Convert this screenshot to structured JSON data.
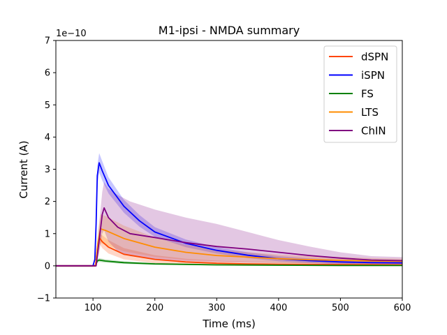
{
  "chart_data": {
    "type": "line",
    "title": "M1-ipsi - NMDA summary",
    "xlabel": "Time (ms)",
    "ylabel": "Current (A)",
    "offset_text": "1e−10",
    "xlim": [
      40,
      600
    ],
    "ylim": [
      -1,
      7
    ],
    "xticks": [
      "100",
      "200",
      "300",
      "400",
      "500",
      "600"
    ],
    "yticks": [
      "−1",
      "0",
      "1",
      "2",
      "3",
      "4",
      "5",
      "6",
      "7"
    ],
    "grid": false,
    "legend_position": "top-right",
    "series": [
      {
        "name": "dSPN",
        "color": "#ff4500",
        "mean": [
          [
            40,
            0
          ],
          [
            100,
            0
          ],
          [
            104,
            0
          ],
          [
            107,
            0.55
          ],
          [
            110,
            0.88
          ],
          [
            115,
            0.75
          ],
          [
            125,
            0.58
          ],
          [
            150,
            0.36
          ],
          [
            200,
            0.2
          ],
          [
            250,
            0.12
          ],
          [
            300,
            0.08
          ],
          [
            350,
            0.06
          ],
          [
            400,
            0.05
          ],
          [
            500,
            0.04
          ],
          [
            600,
            0.03
          ]
        ],
        "upper": [
          [
            40,
            0.03
          ],
          [
            100,
            0.03
          ],
          [
            104,
            0.05
          ],
          [
            107,
            0.75
          ],
          [
            110,
            1.0
          ],
          [
            115,
            0.95
          ],
          [
            125,
            0.8
          ],
          [
            150,
            0.55
          ],
          [
            200,
            0.33
          ],
          [
            250,
            0.22
          ],
          [
            300,
            0.16
          ],
          [
            350,
            0.13
          ],
          [
            400,
            0.11
          ],
          [
            500,
            0.09
          ],
          [
            600,
            0.08
          ]
        ],
        "lower": [
          [
            40,
            -0.03
          ],
          [
            100,
            -0.03
          ],
          [
            104,
            -0.03
          ],
          [
            107,
            0.35
          ],
          [
            110,
            0.7
          ],
          [
            115,
            0.55
          ],
          [
            125,
            0.38
          ],
          [
            150,
            0.2
          ],
          [
            200,
            0.08
          ],
          [
            250,
            0.03
          ],
          [
            300,
            0.01
          ],
          [
            350,
            0.0
          ],
          [
            400,
            0.0
          ],
          [
            500,
            -0.01
          ],
          [
            600,
            -0.01
          ]
        ]
      },
      {
        "name": "iSPN",
        "color": "#0000ff",
        "mean": [
          [
            40,
            0
          ],
          [
            100,
            0
          ],
          [
            103,
            0.2
          ],
          [
            105,
            1.3
          ],
          [
            107,
            2.8
          ],
          [
            110,
            3.2
          ],
          [
            115,
            2.95
          ],
          [
            125,
            2.5
          ],
          [
            150,
            1.85
          ],
          [
            175,
            1.4
          ],
          [
            200,
            1.05
          ],
          [
            250,
            0.7
          ],
          [
            300,
            0.48
          ],
          [
            350,
            0.33
          ],
          [
            400,
            0.22
          ],
          [
            450,
            0.16
          ],
          [
            500,
            0.12
          ],
          [
            550,
            0.1
          ],
          [
            600,
            0.09
          ]
        ],
        "upper": [
          [
            40,
            0.03
          ],
          [
            100,
            0.03
          ],
          [
            103,
            0.25
          ],
          [
            105,
            1.5
          ],
          [
            107,
            3.1
          ],
          [
            110,
            3.5
          ],
          [
            115,
            3.25
          ],
          [
            125,
            2.75
          ],
          [
            150,
            2.05
          ],
          [
            175,
            1.58
          ],
          [
            200,
            1.2
          ],
          [
            250,
            0.82
          ],
          [
            300,
            0.58
          ],
          [
            350,
            0.42
          ],
          [
            400,
            0.3
          ],
          [
            450,
            0.23
          ],
          [
            500,
            0.19
          ],
          [
            550,
            0.16
          ],
          [
            600,
            0.15
          ]
        ],
        "lower": [
          [
            40,
            -0.03
          ],
          [
            100,
            -0.03
          ],
          [
            103,
            0.15
          ],
          [
            105,
            1.1
          ],
          [
            107,
            2.5
          ],
          [
            110,
            2.9
          ],
          [
            115,
            2.65
          ],
          [
            125,
            2.25
          ],
          [
            150,
            1.65
          ],
          [
            175,
            1.22
          ],
          [
            200,
            0.9
          ],
          [
            250,
            0.58
          ],
          [
            300,
            0.38
          ],
          [
            350,
            0.24
          ],
          [
            400,
            0.14
          ],
          [
            450,
            0.09
          ],
          [
            500,
            0.05
          ],
          [
            550,
            0.03
          ],
          [
            600,
            0.03
          ]
        ]
      },
      {
        "name": "FS",
        "color": "#008000",
        "mean": [
          [
            40,
            0
          ],
          [
            100,
            0
          ],
          [
            104,
            0
          ],
          [
            107,
            0.15
          ],
          [
            110,
            0.18
          ],
          [
            120,
            0.15
          ],
          [
            150,
            0.1
          ],
          [
            200,
            0.06
          ],
          [
            300,
            0.03
          ],
          [
            400,
            0.02
          ],
          [
            500,
            0.01
          ],
          [
            600,
            0.01
          ]
        ],
        "upper": [
          [
            40,
            0.02
          ],
          [
            100,
            0.02
          ],
          [
            104,
            0.03
          ],
          [
            107,
            0.2
          ],
          [
            110,
            0.24
          ],
          [
            120,
            0.2
          ],
          [
            150,
            0.14
          ],
          [
            200,
            0.09
          ],
          [
            300,
            0.05
          ],
          [
            400,
            0.04
          ],
          [
            500,
            0.03
          ],
          [
            600,
            0.03
          ]
        ],
        "lower": [
          [
            40,
            -0.02
          ],
          [
            100,
            -0.02
          ],
          [
            104,
            -0.02
          ],
          [
            107,
            0.1
          ],
          [
            110,
            0.12
          ],
          [
            120,
            0.1
          ],
          [
            150,
            0.06
          ],
          [
            200,
            0.03
          ],
          [
            300,
            0.01
          ],
          [
            400,
            0.0
          ],
          [
            500,
            -0.01
          ],
          [
            600,
            -0.01
          ]
        ]
      },
      {
        "name": "LTS",
        "color": "#ff8c00",
        "mean": [
          [
            40,
            0
          ],
          [
            100,
            0
          ],
          [
            104,
            0
          ],
          [
            108,
            0.7
          ],
          [
            112,
            1.15
          ],
          [
            120,
            1.1
          ],
          [
            150,
            0.85
          ],
          [
            200,
            0.58
          ],
          [
            250,
            0.42
          ],
          [
            300,
            0.32
          ],
          [
            350,
            0.27
          ],
          [
            400,
            0.22
          ],
          [
            450,
            0.19
          ],
          [
            500,
            0.17
          ],
          [
            550,
            0.15
          ],
          [
            600,
            0.14
          ]
        ],
        "upper": [
          [
            40,
            0.03
          ],
          [
            100,
            0.03
          ],
          [
            104,
            0.05
          ],
          [
            108,
            1.1
          ],
          [
            112,
            1.6
          ],
          [
            120,
            1.55
          ],
          [
            150,
            1.25
          ],
          [
            200,
            0.88
          ],
          [
            250,
            0.65
          ],
          [
            300,
            0.5
          ],
          [
            350,
            0.42
          ],
          [
            400,
            0.35
          ],
          [
            450,
            0.3
          ],
          [
            500,
            0.27
          ],
          [
            550,
            0.24
          ],
          [
            600,
            0.22
          ]
        ],
        "lower": [
          [
            40,
            -0.03
          ],
          [
            100,
            -0.03
          ],
          [
            104,
            -0.03
          ],
          [
            108,
            0.3
          ],
          [
            112,
            0.7
          ],
          [
            120,
            0.65
          ],
          [
            150,
            0.45
          ],
          [
            200,
            0.28
          ],
          [
            250,
            0.19
          ],
          [
            300,
            0.14
          ],
          [
            350,
            0.12
          ],
          [
            400,
            0.09
          ],
          [
            450,
            0.08
          ],
          [
            500,
            0.07
          ],
          [
            550,
            0.06
          ],
          [
            600,
            0.06
          ]
        ]
      },
      {
        "name": "ChIN",
        "color": "#800080",
        "mean": [
          [
            40,
            0
          ],
          [
            100,
            0
          ],
          [
            105,
            0
          ],
          [
            110,
            0.8
          ],
          [
            115,
            1.6
          ],
          [
            118,
            1.8
          ],
          [
            125,
            1.5
          ],
          [
            140,
            1.2
          ],
          [
            160,
            1.0
          ],
          [
            200,
            0.88
          ],
          [
            250,
            0.72
          ],
          [
            300,
            0.6
          ],
          [
            350,
            0.52
          ],
          [
            400,
            0.42
          ],
          [
            450,
            0.32
          ],
          [
            500,
            0.24
          ],
          [
            550,
            0.18
          ],
          [
            600,
            0.16
          ]
        ],
        "upper": [
          [
            40,
            0.03
          ],
          [
            100,
            0.03
          ],
          [
            105,
            0.05
          ],
          [
            110,
            1.3
          ],
          [
            115,
            2.3
          ],
          [
            118,
            2.6
          ],
          [
            125,
            2.4
          ],
          [
            140,
            2.2
          ],
          [
            160,
            2.0
          ],
          [
            200,
            1.75
          ],
          [
            250,
            1.5
          ],
          [
            300,
            1.3
          ],
          [
            350,
            1.05
          ],
          [
            400,
            0.8
          ],
          [
            450,
            0.6
          ],
          [
            500,
            0.42
          ],
          [
            550,
            0.3
          ],
          [
            600,
            0.27
          ]
        ],
        "lower": [
          [
            40,
            -0.03
          ],
          [
            100,
            -0.03
          ],
          [
            105,
            -0.03
          ],
          [
            110,
            0.4
          ],
          [
            115,
            1.0
          ],
          [
            118,
            1.1
          ],
          [
            125,
            0.75
          ],
          [
            140,
            0.45
          ],
          [
            160,
            0.3
          ],
          [
            200,
            0.2
          ],
          [
            250,
            0.15
          ],
          [
            300,
            0.12
          ],
          [
            350,
            0.1
          ],
          [
            400,
            0.09
          ],
          [
            450,
            0.08
          ],
          [
            500,
            0.07
          ],
          [
            550,
            0.06
          ],
          [
            600,
            0.06
          ]
        ]
      }
    ]
  }
}
